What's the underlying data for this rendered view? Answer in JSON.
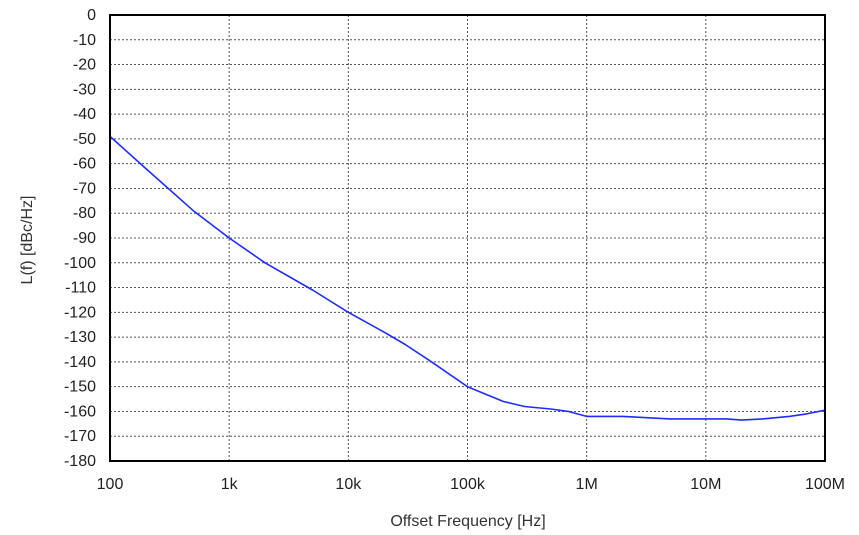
{
  "chart_data": {
    "type": "line",
    "title": "",
    "xlabel": "Offset Frequency [Hz]",
    "ylabel": "L(f) [dBc/Hz]",
    "xscale": "log",
    "xlim": [
      100,
      100000000
    ],
    "ylim": [
      -180,
      0
    ],
    "grid": true,
    "legend": "none",
    "x_ticks": [
      {
        "value": 100,
        "label": "100"
      },
      {
        "value": 1000,
        "label": "1k"
      },
      {
        "value": 10000,
        "label": "10k"
      },
      {
        "value": 100000,
        "label": "100k"
      },
      {
        "value": 1000000,
        "label": "1M"
      },
      {
        "value": 10000000,
        "label": "10M"
      },
      {
        "value": 100000000,
        "label": "100M"
      }
    ],
    "y_ticks": [
      {
        "value": 0,
        "label": "0"
      },
      {
        "value": -10,
        "label": "-10"
      },
      {
        "value": -20,
        "label": "-20"
      },
      {
        "value": -30,
        "label": "-30"
      },
      {
        "value": -40,
        "label": "-40"
      },
      {
        "value": -50,
        "label": "-50"
      },
      {
        "value": -60,
        "label": "-60"
      },
      {
        "value": -70,
        "label": "-70"
      },
      {
        "value": -80,
        "label": "-80"
      },
      {
        "value": -90,
        "label": "-90"
      },
      {
        "value": -100,
        "label": "-100"
      },
      {
        "value": -110,
        "label": "-110"
      },
      {
        "value": -120,
        "label": "-120"
      },
      {
        "value": -130,
        "label": "-130"
      },
      {
        "value": -140,
        "label": "-140"
      },
      {
        "value": -150,
        "label": "-150"
      },
      {
        "value": -160,
        "label": "-160"
      },
      {
        "value": -170,
        "label": "-170"
      },
      {
        "value": -180,
        "label": "-180"
      }
    ],
    "series": [
      {
        "color": "#1f2dff",
        "x": [
          100,
          200,
          500,
          1000,
          2000,
          5000,
          10000,
          20000,
          30000,
          50000,
          100000,
          200000,
          300000,
          500000,
          700000,
          1000000,
          2000000,
          5000000,
          10000000,
          15000000,
          20000000,
          30000000,
          50000000,
          70000000,
          100000000
        ],
        "y": [
          -49,
          -62,
          -79,
          -90,
          -100,
          -111,
          -120,
          -128,
          -133,
          -140,
          -150,
          -156,
          -158,
          -159,
          -160,
          -162,
          -162,
          -163,
          -163,
          -163,
          -163.5,
          -163,
          -162,
          -161,
          -159.5
        ]
      }
    ]
  }
}
